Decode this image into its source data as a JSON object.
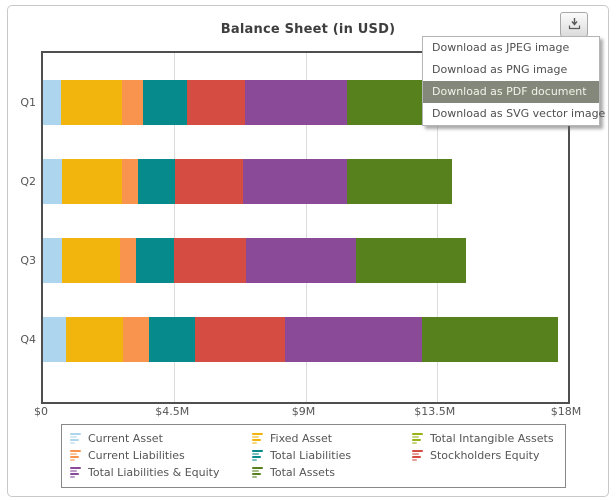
{
  "header": {
    "title": "Balance Sheet (in USD)"
  },
  "export_button": {
    "icon": "download-icon",
    "tooltip_label": ""
  },
  "export_menu": {
    "items": [
      {
        "label": "Download as JPEG image",
        "highlighted": false
      },
      {
        "label": "Download as PNG image",
        "highlighted": false
      },
      {
        "label": "Download as PDF document",
        "highlighted": true
      },
      {
        "label": "Download as SVG vector image",
        "highlighted": false
      }
    ],
    "highlight_color": "#84887a"
  },
  "chart_data": {
    "type": "bar",
    "stacked": true,
    "orientation": "horizontal",
    "title": "Balance Sheet (in USD)",
    "categories": [
      "Q1",
      "Q2",
      "Q3",
      "Q4"
    ],
    "series": [
      {
        "name": "Current Asset",
        "color": "#aed5ee",
        "values": [
          0.62,
          0.64,
          0.64,
          0.79
        ]
      },
      {
        "name": "Fixed Asset",
        "color": "#f2b50d",
        "values": [
          2.1,
          2.08,
          2.0,
          1.96
        ]
      },
      {
        "name": "Total Intangible Assets",
        "color": "#9ab218",
        "values": [
          0,
          0,
          0,
          0
        ]
      },
      {
        "name": "Current Liabilities",
        "color": "#f8944d",
        "values": [
          0.7,
          0.54,
          0.54,
          0.88
        ]
      },
      {
        "name": "Total Liabilities",
        "color": "#078a8c",
        "values": [
          1.52,
          1.28,
          1.31,
          1.58
        ]
      },
      {
        "name": "Stockholders Equity",
        "color": "#d54c43",
        "values": [
          1.98,
          2.31,
          2.47,
          3.1
        ]
      },
      {
        "name": "Total Liabilities & Equity",
        "color": "#8b4a97",
        "values": [
          3.5,
          3.59,
          3.78,
          4.68
        ]
      },
      {
        "name": "Total Assets",
        "color": "#57811d",
        "values": [
          3.5,
          3.59,
          3.78,
          4.68
        ]
      }
    ],
    "x_axis": {
      "min": 0,
      "max": 18,
      "unit": "USD millions",
      "ticks": [
        "$0",
        "$4.5M",
        "$9M",
        "$13.5M",
        "$18M"
      ]
    },
    "grid": true,
    "legend_position": "bottom"
  },
  "colors": {
    "plot_border": "#4f4f4f",
    "grid_line": "#dcdcdc",
    "axis_text": "#555555",
    "title_text": "#3e3e3e"
  }
}
